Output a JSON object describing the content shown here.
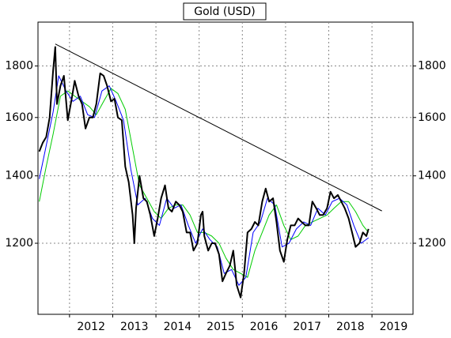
{
  "chart_data": {
    "type": "line",
    "title": "Gold (USD)",
    "ylog": true,
    "grid": true,
    "ylim": [
      1020,
      1990
    ],
    "yticks": [
      1200,
      1400,
      1600,
      1800
    ],
    "xlim": [
      2011.27,
      2019.95
    ],
    "xticks": [
      {
        "value": 2012.5,
        "label": "2012"
      },
      {
        "value": 2013.5,
        "label": "2013"
      },
      {
        "value": 2014.5,
        "label": "2014"
      },
      {
        "value": 2015.5,
        "label": "2015"
      },
      {
        "value": 2016.5,
        "label": "2016"
      },
      {
        "value": 2017.5,
        "label": "2017"
      },
      {
        "value": 2018.5,
        "label": "2018"
      },
      {
        "value": 2019.5,
        "label": "2019"
      }
    ],
    "xgrid": [
      2012,
      2013,
      2014,
      2015,
      2016,
      2017,
      2018,
      2019
    ],
    "series": [
      {
        "color": "#000000",
        "width": 2,
        "x": [
          2011.3,
          2011.38,
          2011.46,
          2011.54,
          2011.62,
          2011.67,
          2011.71,
          2011.79,
          2011.87,
          2011.96,
          2012.04,
          2012.12,
          2012.21,
          2012.29,
          2012.37,
          2012.46,
          2012.54,
          2012.62,
          2012.71,
          2012.79,
          2012.87,
          2012.96,
          2013.04,
          2013.12,
          2013.21,
          2013.29,
          2013.37,
          2013.46,
          2013.5,
          2013.54,
          2013.62,
          2013.71,
          2013.79,
          2013.87,
          2013.96,
          2014.04,
          2014.12,
          2014.21,
          2014.29,
          2014.37,
          2014.46,
          2014.54,
          2014.62,
          2014.71,
          2014.79,
          2014.87,
          2014.96,
          2015.04,
          2015.08,
          2015.12,
          2015.21,
          2015.29,
          2015.37,
          2015.46,
          2015.54,
          2015.62,
          2015.71,
          2015.79,
          2015.87,
          2015.96,
          2016.04,
          2016.12,
          2016.21,
          2016.29,
          2016.37,
          2016.46,
          2016.54,
          2016.62,
          2016.71,
          2016.79,
          2016.87,
          2016.96,
          2017.04,
          2017.12,
          2017.21,
          2017.29,
          2017.37,
          2017.46,
          2017.54,
          2017.62,
          2017.71,
          2017.79,
          2017.87,
          2017.96,
          2018.04,
          2018.12,
          2018.21,
          2018.29,
          2018.37,
          2018.46,
          2018.54,
          2018.62,
          2018.71,
          2018.79,
          2018.87,
          2018.92
        ],
        "values": [
          1480,
          1510,
          1530,
          1600,
          1780,
          1880,
          1650,
          1720,
          1760,
          1590,
          1660,
          1740,
          1680,
          1650,
          1560,
          1600,
          1600,
          1650,
          1770,
          1760,
          1720,
          1660,
          1670,
          1600,
          1590,
          1430,
          1380,
          1280,
          1200,
          1300,
          1400,
          1330,
          1320,
          1280,
          1220,
          1270,
          1330,
          1370,
          1300,
          1290,
          1320,
          1310,
          1290,
          1230,
          1230,
          1180,
          1200,
          1280,
          1290,
          1220,
          1180,
          1200,
          1200,
          1170,
          1100,
          1120,
          1140,
          1180,
          1090,
          1060,
          1120,
          1230,
          1240,
          1260,
          1250,
          1320,
          1360,
          1320,
          1330,
          1260,
          1180,
          1150,
          1210,
          1250,
          1250,
          1270,
          1260,
          1250,
          1250,
          1320,
          1300,
          1280,
          1280,
          1300,
          1350,
          1330,
          1340,
          1320,
          1300,
          1270,
          1230,
          1190,
          1200,
          1230,
          1220,
          1240
        ]
      },
      {
        "color": "#0000ff",
        "width": 1,
        "x": [
          2011.3,
          2011.46,
          2011.62,
          2011.75,
          2011.92,
          2012.08,
          2012.25,
          2012.42,
          2012.58,
          2012.75,
          2012.92,
          2013.08,
          2013.25,
          2013.42,
          2013.58,
          2013.75,
          2013.92,
          2014.08,
          2014.25,
          2014.42,
          2014.58,
          2014.75,
          2014.92,
          2015.08,
          2015.25,
          2015.42,
          2015.58,
          2015.75,
          2015.92,
          2016.08,
          2016.25,
          2016.42,
          2016.58,
          2016.75,
          2016.92,
          2017.08,
          2017.25,
          2017.42,
          2017.58,
          2017.75,
          2017.92,
          2018.08,
          2018.25,
          2018.42,
          2018.58,
          2018.75,
          2018.92
        ],
        "values": [
          1390,
          1500,
          1620,
          1760,
          1700,
          1660,
          1680,
          1610,
          1600,
          1700,
          1720,
          1660,
          1590,
          1420,
          1310,
          1330,
          1270,
          1250,
          1330,
          1300,
          1310,
          1250,
          1200,
          1240,
          1210,
          1190,
          1120,
          1130,
          1090,
          1110,
          1230,
          1260,
          1330,
          1310,
          1190,
          1200,
          1240,
          1260,
          1250,
          1300,
          1280,
          1320,
          1330,
          1310,
          1250,
          1200,
          1215
        ]
      },
      {
        "color": "#00cc00",
        "width": 1,
        "x": [
          2011.3,
          2011.46,
          2011.62,
          2011.79,
          2011.96,
          2012.12,
          2012.29,
          2012.46,
          2012.62,
          2012.79,
          2012.96,
          2013.12,
          2013.29,
          2013.46,
          2013.62,
          2013.79,
          2013.96,
          2014.12,
          2014.29,
          2014.46,
          2014.62,
          2014.79,
          2014.96,
          2015.12,
          2015.29,
          2015.46,
          2015.62,
          2015.79,
          2015.96,
          2016.12,
          2016.29,
          2016.46,
          2016.62,
          2016.79,
          2016.96,
          2017.12,
          2017.29,
          2017.46,
          2017.62,
          2017.79,
          2017.96,
          2018.12,
          2018.29,
          2018.46,
          2018.62,
          2018.79,
          2018.92
        ],
        "values": [
          1320,
          1430,
          1540,
          1680,
          1700,
          1680,
          1660,
          1640,
          1610,
          1660,
          1710,
          1690,
          1630,
          1490,
          1370,
          1330,
          1290,
          1270,
          1300,
          1310,
          1310,
          1280,
          1230,
          1230,
          1220,
          1200,
          1160,
          1130,
          1120,
          1110,
          1180,
          1230,
          1280,
          1310,
          1250,
          1210,
          1220,
          1250,
          1260,
          1270,
          1280,
          1300,
          1320,
          1320,
          1290,
          1250,
          1230
        ]
      },
      {
        "color": "#000000",
        "width": 1,
        "x": [
          2011.67,
          2019.23
        ],
        "values": [
          1893,
          1292
        ]
      }
    ]
  }
}
